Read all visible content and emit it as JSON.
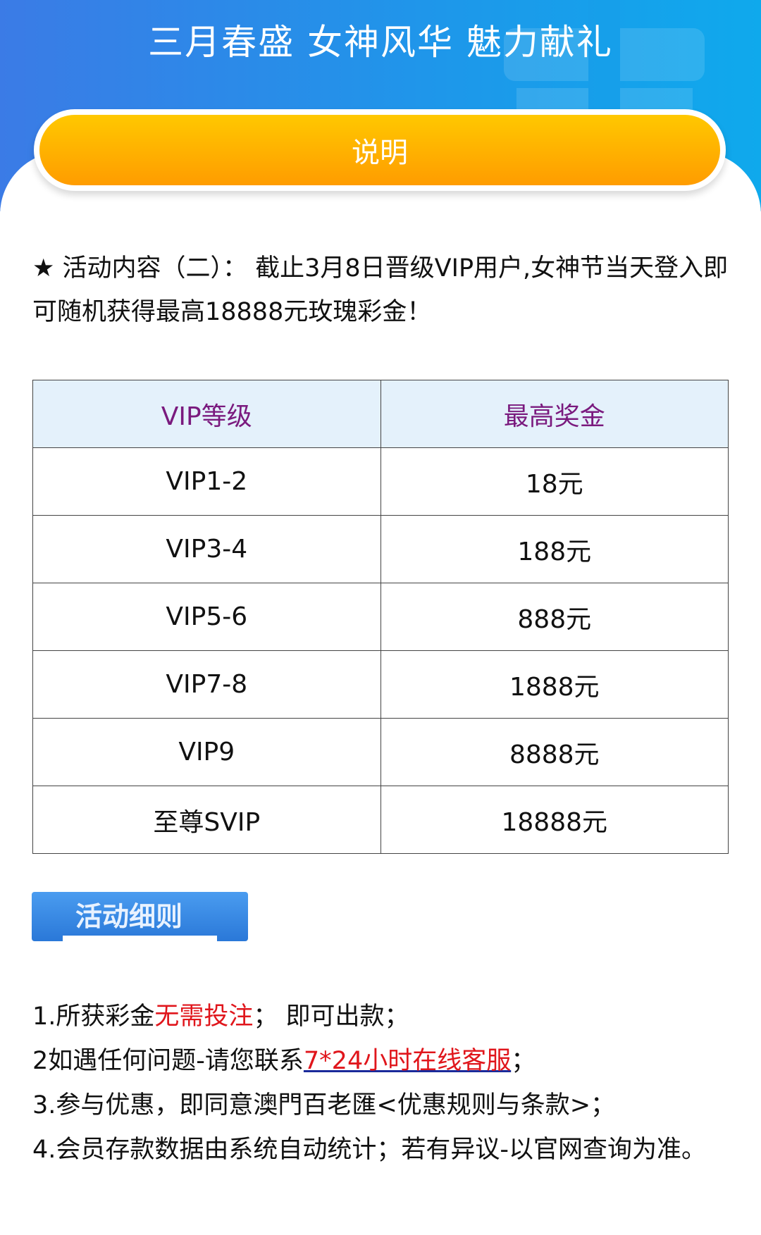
{
  "header": {
    "title": "三月春盛 女神风华 魅力献礼",
    "button_label": "说明"
  },
  "intro": {
    "star": "★",
    "text": " 活动内容（二）： 截止3月8日晋级VIP用户,女神节当天登入即可随机获得最高18888元玫瑰彩金！"
  },
  "table": {
    "headers": [
      "VIP等级",
      "最高奖金"
    ],
    "rows": [
      [
        "VIP1-2",
        "18元"
      ],
      [
        "VIP3-4",
        "188元"
      ],
      [
        "VIP5-6",
        "888元"
      ],
      [
        "VIP7-8",
        "1888元"
      ],
      [
        "VIP9",
        "8888元"
      ],
      [
        "至尊SVIP",
        "18888元"
      ]
    ]
  },
  "rules": {
    "badge": "活动细则",
    "r1a": "1.所获彩金",
    "r1b": "无需投注",
    "r1c": "； 即可出款；",
    "r2a": "2如遇任何问题-请您联系",
    "r2b": "7*24小时在线客服",
    "r2c": "；",
    "r3": "3.参与优惠，即同意澳門百老匯<优惠规则与条款>；",
    "r4": "4.会员存款数据由系统自动统计；若有异议-以官网查询为准。"
  },
  "colors": {
    "header_gradient": [
      "#3b7be6",
      "#0fa9ec"
    ],
    "button": [
      "#ffc800",
      "#ff9c00"
    ],
    "table_header_text": "#7a1a7e",
    "highlight": "#e0161c"
  }
}
